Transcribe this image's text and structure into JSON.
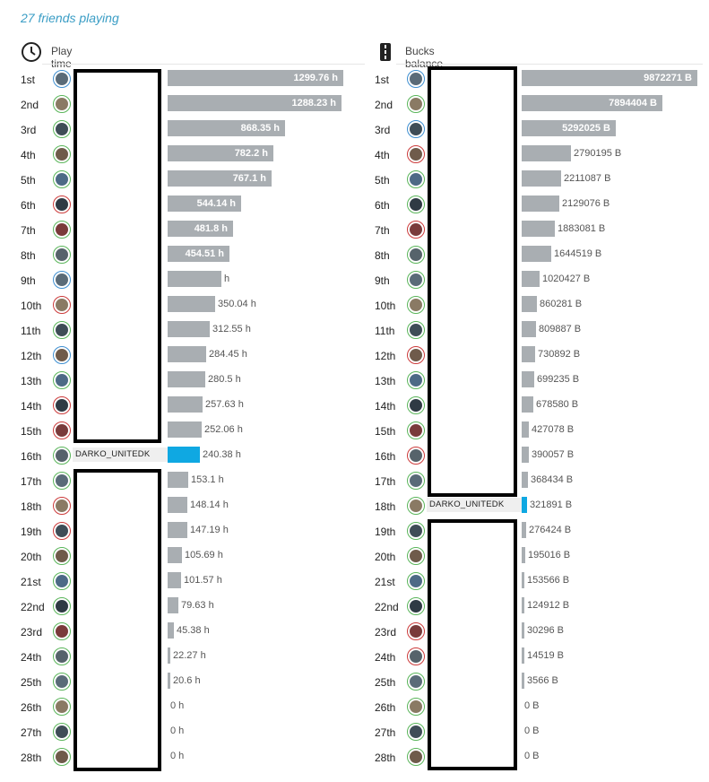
{
  "header": {
    "friends_playing": "27 friends playing"
  },
  "icons": {
    "play_time": "clock-icon",
    "bucks": "road-icon"
  },
  "colors": {
    "bar": "#a9aeb2",
    "highlight": "#0fa8e2",
    "accent_text": "#3a9dc5"
  },
  "play_time": {
    "title": "Play time",
    "max": 1299.76,
    "entries": [
      {
        "rank": "1st",
        "value": 1299.76,
        "label": "1299.76 h",
        "avatar": "blue"
      },
      {
        "rank": "2nd",
        "value": 1288.23,
        "label": "1288.23 h",
        "avatar": "green"
      },
      {
        "rank": "3rd",
        "value": 868.35,
        "label": "868.35 h",
        "avatar": "green"
      },
      {
        "rank": "4th",
        "value": 782.2,
        "label": "782.2 h",
        "avatar": "green"
      },
      {
        "rank": "5th",
        "value": 767.1,
        "label": "767.1 h",
        "avatar": "green"
      },
      {
        "rank": "6th",
        "value": 544.14,
        "label": "544.14 h",
        "avatar": "red"
      },
      {
        "rank": "7th",
        "value": 481.8,
        "label": "481.8 h",
        "avatar": "green"
      },
      {
        "rank": "8th",
        "value": 454.51,
        "label": "454.51 h",
        "avatar": "green"
      },
      {
        "rank": "9th",
        "value": 400,
        "label": "h",
        "avatar": "blue"
      },
      {
        "rank": "10th",
        "value": 350.04,
        "label": "350.04 h",
        "avatar": "red"
      },
      {
        "rank": "11th",
        "value": 312.55,
        "label": "312.55 h",
        "avatar": "green"
      },
      {
        "rank": "12th",
        "value": 284.45,
        "label": "284.45 h",
        "avatar": "blue"
      },
      {
        "rank": "13th",
        "value": 280.5,
        "label": "280.5 h",
        "avatar": "green"
      },
      {
        "rank": "14th",
        "value": 257.63,
        "label": "257.63 h",
        "avatar": "red"
      },
      {
        "rank": "15th",
        "value": 252.06,
        "label": "252.06 h",
        "avatar": "red"
      },
      {
        "rank": "16th",
        "value": 240.38,
        "label": "240.38 h",
        "avatar": "green",
        "name": "DARKO_UNITEDK",
        "me": true
      },
      {
        "rank": "17th",
        "value": 153.1,
        "label": "153.1 h",
        "avatar": "green"
      },
      {
        "rank": "18th",
        "value": 148.14,
        "label": "148.14 h",
        "avatar": "red"
      },
      {
        "rank": "19th",
        "value": 147.19,
        "label": "147.19 h",
        "avatar": "red"
      },
      {
        "rank": "20th",
        "value": 105.69,
        "label": "105.69 h",
        "avatar": "green"
      },
      {
        "rank": "21st",
        "value": 101.57,
        "label": "101.57 h",
        "avatar": "green"
      },
      {
        "rank": "22nd",
        "value": 79.63,
        "label": "79.63 h",
        "avatar": "green"
      },
      {
        "rank": "23rd",
        "value": 45.38,
        "label": "45.38 h",
        "avatar": "green"
      },
      {
        "rank": "24th",
        "value": 22.27,
        "label": "22.27 h",
        "avatar": "green"
      },
      {
        "rank": "25th",
        "value": 20.6,
        "label": "20.6 h",
        "avatar": "green"
      },
      {
        "rank": "26th",
        "value": 0,
        "label": "0 h",
        "avatar": "green"
      },
      {
        "rank": "27th",
        "value": 0,
        "label": "0 h",
        "avatar": "green"
      },
      {
        "rank": "28th",
        "value": 0,
        "label": "0 h",
        "avatar": "green"
      }
    ]
  },
  "bucks": {
    "title": "Bucks balance",
    "max": 9872271,
    "entries": [
      {
        "rank": "1st",
        "value": 9872271,
        "label": "9872271 B",
        "avatar": "blue"
      },
      {
        "rank": "2nd",
        "value": 7894404,
        "label": "7894404 B",
        "avatar": "green"
      },
      {
        "rank": "3rd",
        "value": 5292025,
        "label": "5292025 B",
        "avatar": "blue"
      },
      {
        "rank": "4th",
        "value": 2790195,
        "label": "2790195 B",
        "avatar": "red"
      },
      {
        "rank": "5th",
        "value": 2211087,
        "label": "2211087 B",
        "avatar": "green"
      },
      {
        "rank": "6th",
        "value": 2129076,
        "label": "2129076 B",
        "avatar": "green"
      },
      {
        "rank": "7th",
        "value": 1883081,
        "label": "1883081 B",
        "avatar": "red"
      },
      {
        "rank": "8th",
        "value": 1644519,
        "label": "1644519 B",
        "avatar": "green"
      },
      {
        "rank": "9th",
        "value": 1020427,
        "label": "1020427 B",
        "avatar": "green"
      },
      {
        "rank": "10th",
        "value": 860281,
        "label": "860281 B",
        "avatar": "green"
      },
      {
        "rank": "11th",
        "value": 809887,
        "label": "809887 B",
        "avatar": "green"
      },
      {
        "rank": "12th",
        "value": 730892,
        "label": "730892 B",
        "avatar": "red"
      },
      {
        "rank": "13th",
        "value": 699235,
        "label": "699235 B",
        "avatar": "green"
      },
      {
        "rank": "14th",
        "value": 678580,
        "label": "678580 B",
        "avatar": "green"
      },
      {
        "rank": "15th",
        "value": 427078,
        "label": "427078 B",
        "avatar": "green"
      },
      {
        "rank": "16th",
        "value": 390057,
        "label": "390057 B",
        "avatar": "red"
      },
      {
        "rank": "17th",
        "value": 368434,
        "label": "368434 B",
        "avatar": "green"
      },
      {
        "rank": "18th",
        "value": 321891,
        "label": "321891 B",
        "avatar": "green",
        "name": "DARKO_UNITEDK",
        "me": true
      },
      {
        "rank": "19th",
        "value": 276424,
        "label": "276424 B",
        "avatar": "green"
      },
      {
        "rank": "20th",
        "value": 195016,
        "label": "195016 B",
        "avatar": "green"
      },
      {
        "rank": "21st",
        "value": 153566,
        "label": "153566 B",
        "avatar": "green"
      },
      {
        "rank": "22nd",
        "value": 124912,
        "label": "124912 B",
        "avatar": "green"
      },
      {
        "rank": "23rd",
        "value": 30296,
        "label": "30296 B",
        "avatar": "red"
      },
      {
        "rank": "24th",
        "value": 14519,
        "label": "14519 B",
        "avatar": "red"
      },
      {
        "rank": "25th",
        "value": 3566,
        "label": "3566 B",
        "avatar": "green"
      },
      {
        "rank": "26th",
        "value": 0,
        "label": "0 B",
        "avatar": "green"
      },
      {
        "rank": "27th",
        "value": 0,
        "label": "0 B",
        "avatar": "green"
      },
      {
        "rank": "28th",
        "value": 0,
        "label": "0 B",
        "avatar": "green"
      }
    ]
  }
}
